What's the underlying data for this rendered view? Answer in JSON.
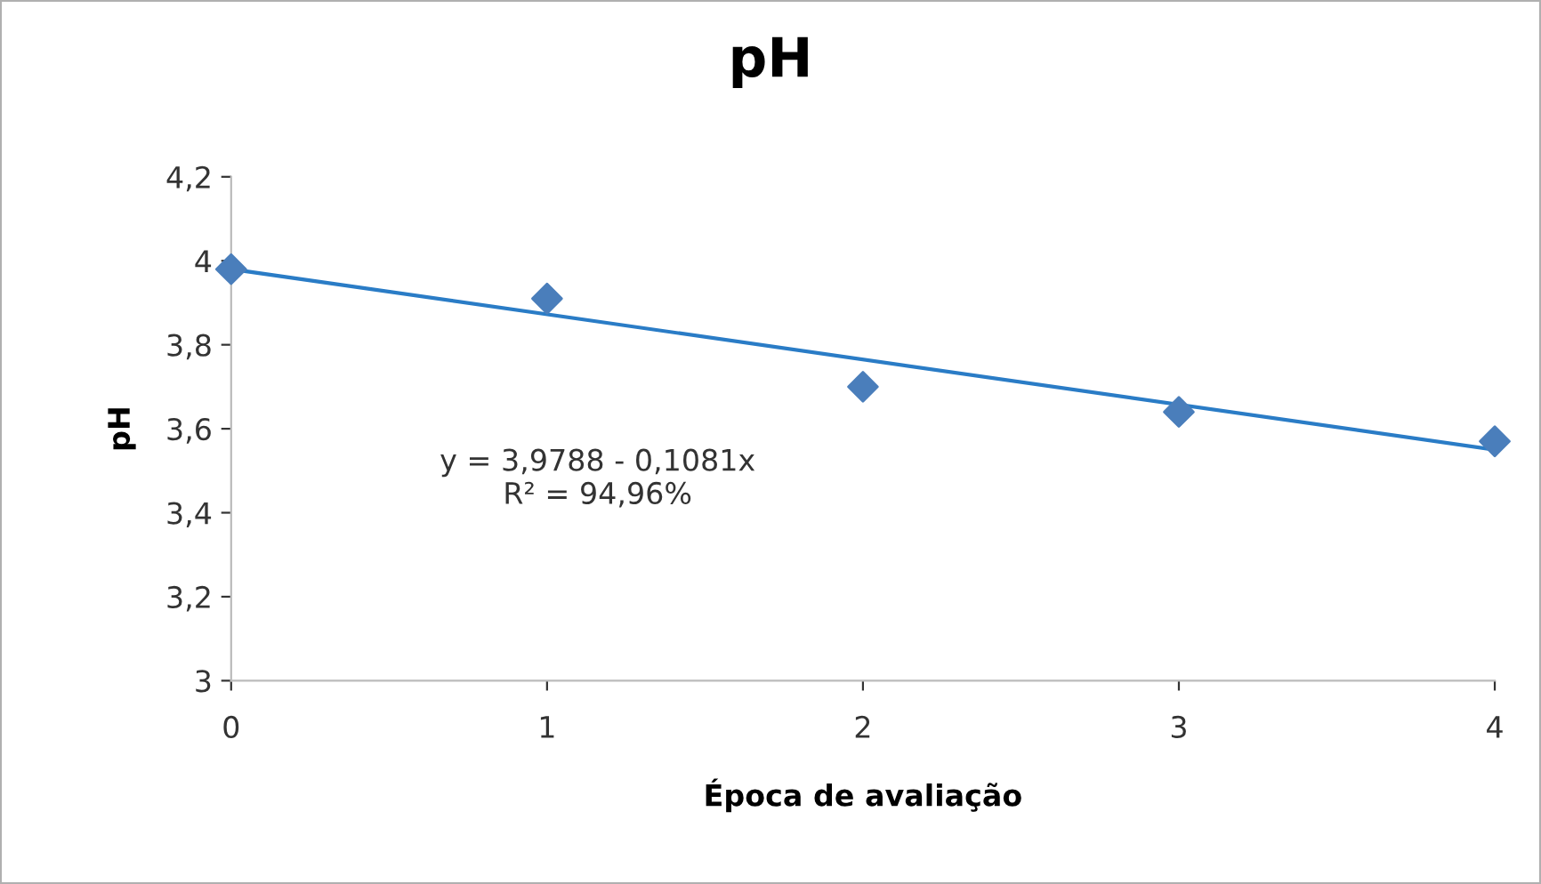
{
  "chart_data": {
    "type": "scatter",
    "title": "pH",
    "xlabel": "Época de avaliação",
    "ylabel": "pH",
    "annotations": [
      "y = 3,9788 - 0,1081x\nR² = 94,96%"
    ],
    "xlim": [
      0,
      4
    ],
    "xticks": [
      0,
      1,
      2,
      3,
      4
    ],
    "ylim": [
      3,
      4.2
    ],
    "yticks": [
      3,
      {
        "value": 3.2,
        "label": "3,2"
      },
      {
        "value": 3.4,
        "label": "3,4"
      },
      {
        "value": 3.6,
        "label": "3,6"
      },
      {
        "value": 3.8,
        "label": "3,8"
      },
      4,
      {
        "value": 4.2,
        "label": "4,2"
      }
    ],
    "grid": false,
    "legend": false,
    "marker": "diamond",
    "series": [
      {
        "color": "#4a7ebb",
        "x": [
          0,
          1,
          2,
          3,
          4
        ],
        "values": [
          3.98,
          3.91,
          3.7,
          3.64,
          3.57
        ]
      },
      {
        "type": "line",
        "color": "#2a7cc6",
        "marker": "none",
        "line_style": "solid",
        "x": [
          0,
          4
        ],
        "values": [
          3.98,
          3.55
        ]
      }
    ]
  }
}
